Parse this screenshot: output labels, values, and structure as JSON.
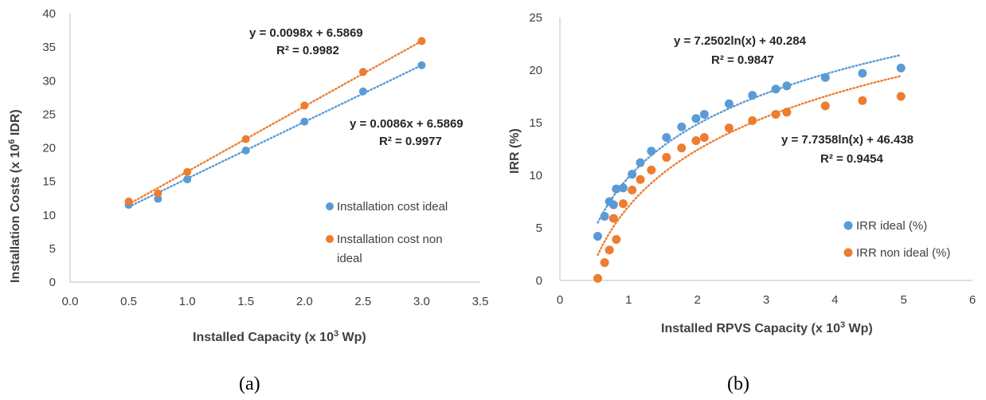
{
  "chart_data": [
    {
      "type": "scatter",
      "caption": "(a)",
      "xlabel": "Installed Capacity (x 10",
      "xlabel_sup": "3",
      "xlabel_end": " Wp)",
      "ylabel": "Installation Costs (x 10",
      "ylabel_sup": "6",
      "ylabel_end": " IDR)",
      "xlim": [
        0,
        3.5
      ],
      "ylim": [
        0,
        40
      ],
      "xticks": [
        "0.0",
        "0.5",
        "1.0",
        "1.5",
        "2.0",
        "2.5",
        "3.0",
        "3.5"
      ],
      "yticks": [
        "0",
        "5",
        "10",
        "15",
        "20",
        "25",
        "30",
        "35",
        "40"
      ],
      "grid": false,
      "legend_position": "right",
      "series": [
        {
          "name": "Installation cost ideal",
          "color": "#5B9BD5",
          "x": [
            0.5,
            0.75,
            1.0,
            1.5,
            2.0,
            2.5,
            3.0
          ],
          "y": [
            11.5,
            12.4,
            15.3,
            19.6,
            23.9,
            28.4,
            32.3
          ],
          "trendline": {
            "kind": "linear",
            "equation": "y = 0.0086x + 6.5869",
            "r2": "R² = 0.9977",
            "from": 0.5,
            "to": 3.0,
            "start_y": 11.2,
            "end_y": 32.3
          }
        },
        {
          "name": "Installation cost non ideal",
          "name_line1": "Installation cost non",
          "name_line2": "ideal",
          "color": "#ED7D31",
          "x": [
            0.5,
            0.75,
            1.0,
            1.5,
            2.0,
            2.5,
            3.0
          ],
          "y": [
            12.0,
            13.2,
            16.4,
            21.3,
            26.3,
            31.3,
            35.9
          ],
          "trendline": {
            "kind": "linear",
            "equation": "y = 0.0098x + 6.5869",
            "r2": "R² = 0.9982",
            "from": 0.5,
            "to": 3.0,
            "start_y": 11.6,
            "end_y": 35.9
          }
        }
      ]
    },
    {
      "type": "scatter",
      "caption": "(b)",
      "xlabel": "Installed RPVS Capacity (x 10",
      "xlabel_sup": "3",
      "xlabel_end": " Wp)",
      "ylabel": "IRR (%)",
      "xlim": [
        0,
        6
      ],
      "ylim": [
        0,
        25
      ],
      "xticks": [
        "0",
        "1",
        "2",
        "3",
        "4",
        "5",
        "6"
      ],
      "yticks": [
        "0",
        "5",
        "10",
        "15",
        "20",
        "25"
      ],
      "grid": false,
      "legend_position": "bottom-right",
      "series": [
        {
          "name": "IRR ideal (%)",
          "color": "#5B9BD5",
          "x": [
            0.55,
            0.65,
            0.72,
            0.78,
            0.82,
            0.92,
            1.05,
            1.17,
            1.33,
            1.55,
            1.77,
            1.98,
            2.1,
            2.46,
            2.8,
            3.14,
            3.3,
            3.86,
            4.4,
            4.96
          ],
          "y": [
            4.2,
            6.1,
            7.5,
            7.2,
            8.7,
            8.8,
            10.1,
            11.2,
            12.3,
            13.6,
            14.6,
            15.4,
            15.8,
            16.8,
            17.6,
            18.2,
            18.5,
            19.3,
            19.7,
            20.2
          ],
          "trendline": {
            "kind": "log",
            "equation": "y = 7.2502ln(x) + 40.284",
            "r2": "R² = 0.9847",
            "from": 0.55,
            "to": 4.96,
            "a": 7.25,
            "b": 9.83
          }
        },
        {
          "name": "IRR non ideal (%)",
          "color": "#ED7D31",
          "x": [
            0.55,
            0.65,
            0.72,
            0.78,
            0.82,
            0.92,
            1.05,
            1.17,
            1.33,
            1.55,
            1.77,
            1.98,
            2.1,
            2.46,
            2.8,
            3.14,
            3.3,
            3.86,
            4.4,
            4.96
          ],
          "y": [
            0.2,
            1.7,
            2.9,
            5.9,
            3.9,
            7.3,
            8.6,
            9.6,
            10.5,
            11.7,
            12.6,
            13.3,
            13.6,
            14.5,
            15.2,
            15.8,
            16.0,
            16.6,
            17.1,
            17.5
          ],
          "trendline": {
            "kind": "log",
            "equation": "y = 7.7358ln(x) + 46.438",
            "r2": "R² = 0.9454",
            "from": 0.55,
            "to": 4.96,
            "a": 7.74,
            "b": 7.05
          }
        }
      ]
    }
  ]
}
